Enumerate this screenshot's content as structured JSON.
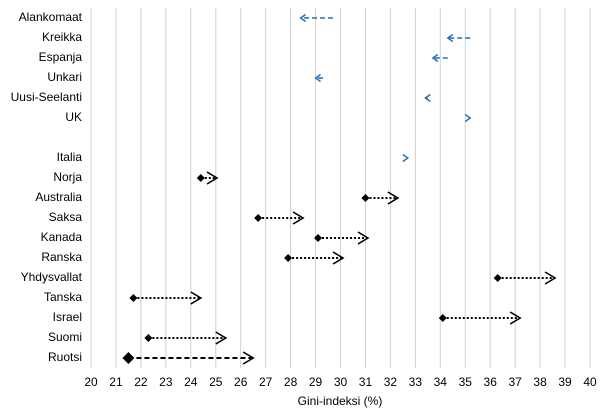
{
  "chart_data": {
    "type": "arrow",
    "categories": [
      "Alankomaat",
      "Kreikka",
      "Espanja",
      "Unkari",
      "Uusi-Seelanti",
      "UK",
      null,
      "Italia",
      "Norja",
      "Australia",
      "Saksa",
      "Kanada",
      "Ranska",
      "Yhdysvallat",
      "Tanska",
      "Israel",
      "Suomi",
      "Ruotsi"
    ],
    "start": [
      29.7,
      35.2,
      34.3,
      29.3,
      33.5,
      35.2,
      null,
      32.7,
      24.4,
      31.0,
      26.7,
      29.1,
      27.9,
      36.3,
      21.7,
      34.1,
      22.3,
      21.5
    ],
    "end": [
      28.4,
      34.3,
      33.7,
      29.0,
      33.4,
      35.2,
      null,
      32.7,
      25.05,
      32.3,
      28.5,
      31.1,
      30.1,
      38.6,
      24.4,
      37.2,
      25.4,
      26.5
    ],
    "colors": [
      "#1f6fb2",
      "#1f6fb2",
      "#1f6fb2",
      "#1f6fb2",
      "#1f6fb2",
      "#1f6fb2",
      null,
      "#1f6fb2",
      "#000000",
      "#000000",
      "#000000",
      "#000000",
      "#000000",
      "#000000",
      "#000000",
      "#000000",
      "#000000",
      "#000000"
    ],
    "line_styles": [
      "dashed",
      "dashed",
      "dashed",
      "dashed",
      "dashed",
      "dashed",
      null,
      "dashed",
      "dotted",
      "dotted",
      "dotted",
      "dotted",
      "dotted",
      "dotted",
      "dotted",
      "dotted",
      "dotted",
      "dashed"
    ],
    "start_markers": [
      "none",
      "none",
      "none",
      "none",
      "none",
      "none",
      null,
      "none",
      "diamond",
      "diamond",
      "diamond",
      "diamond",
      "diamond",
      "diamond",
      "diamond",
      "diamond",
      "diamond",
      "diamond"
    ],
    "xlabel": "Gini-indeksi (%)",
    "xlim": [
      20,
      40
    ],
    "xticks": [
      20,
      21,
      22,
      23,
      24,
      25,
      26,
      27,
      28,
      29,
      30,
      31,
      32,
      33,
      34,
      35,
      36,
      37,
      38,
      39,
      40
    ],
    "grid": true
  }
}
